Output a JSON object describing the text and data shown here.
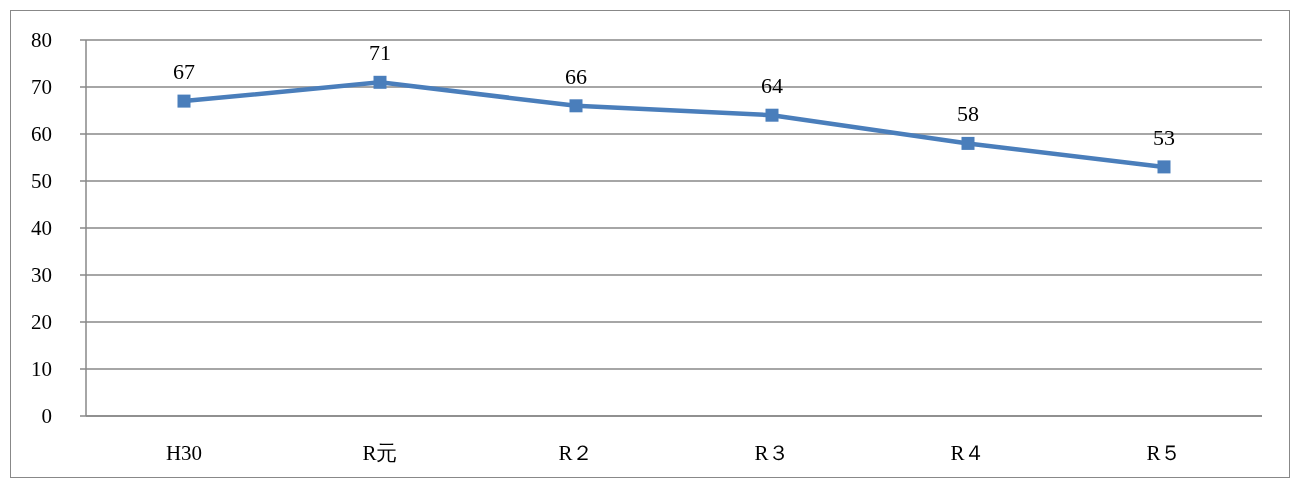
{
  "chart_data": {
    "type": "line",
    "categories": [
      "H30",
      "R元",
      "R２",
      "R３",
      "R４",
      "R５"
    ],
    "series": [
      {
        "color": "#4a7ebb",
        "values": [
          67,
          71,
          66,
          64,
          58,
          53
        ]
      }
    ],
    "ylim": [
      0,
      80
    ],
    "yticks": [
      0,
      10,
      20,
      30,
      40,
      50,
      60,
      70,
      80
    ],
    "grid": "y",
    "marker": "square",
    "line_style": "solid",
    "data_labels": true
  }
}
